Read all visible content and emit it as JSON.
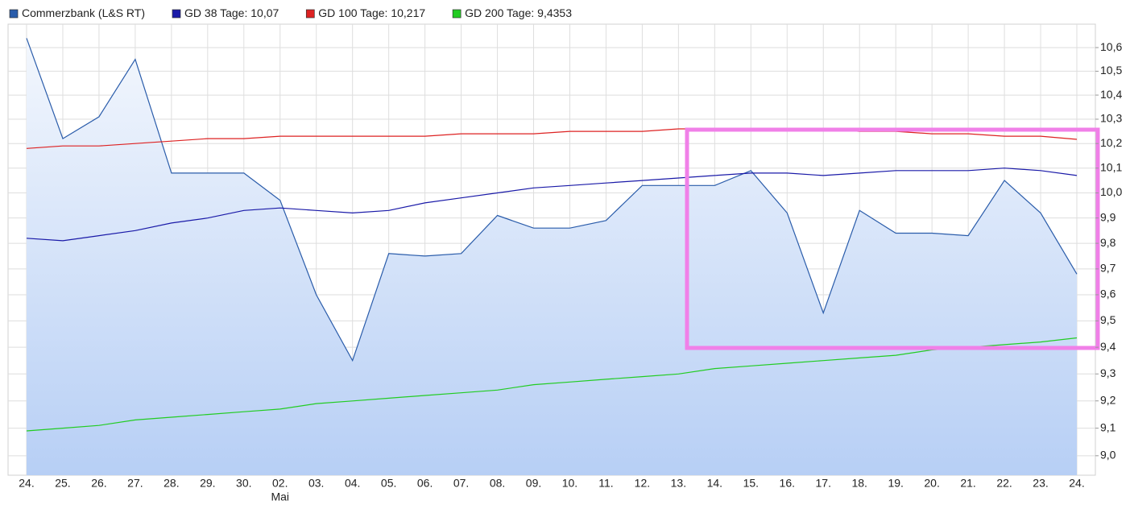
{
  "chart_data": {
    "type": "line",
    "categories": [
      "24.",
      "25.",
      "26.",
      "27.",
      "28.",
      "29.",
      "30.",
      "02.",
      "03.",
      "04.",
      "05.",
      "06.",
      "07.",
      "08.",
      "09.",
      "10.",
      "11.",
      "12.",
      "13.",
      "14.",
      "15.",
      "16.",
      "17.",
      "18.",
      "19.",
      "20.",
      "21.",
      "22.",
      "23.",
      "24."
    ],
    "months": [
      null,
      null,
      null,
      null,
      null,
      null,
      null,
      "Mai",
      null,
      null,
      null,
      null,
      null,
      null,
      null,
      null,
      null,
      null,
      null,
      null,
      null,
      null,
      null,
      null,
      null,
      null,
      null,
      null,
      null,
      null
    ],
    "series": [
      {
        "name": "Commerzbank (L&S RT)",
        "color": "#2a5caa",
        "area": true,
        "values": [
          10.64,
          10.22,
          10.31,
          10.55,
          10.08,
          10.08,
          10.08,
          9.97,
          9.6,
          9.35,
          9.76,
          9.75,
          9.76,
          9.91,
          9.86,
          9.86,
          9.89,
          10.03,
          10.03,
          10.03,
          10.09,
          9.92,
          9.53,
          9.93,
          9.84,
          9.84,
          9.83,
          10.05,
          9.92,
          9.68
        ]
      },
      {
        "name": "GD 38 Tage: 10,07",
        "color": "#1a1aa8",
        "values": [
          9.82,
          9.81,
          9.83,
          9.85,
          9.88,
          9.9,
          9.93,
          9.94,
          9.93,
          9.92,
          9.93,
          9.96,
          9.98,
          10.0,
          10.02,
          10.03,
          10.04,
          10.05,
          10.06,
          10.07,
          10.08,
          10.08,
          10.07,
          10.08,
          10.09,
          10.09,
          10.09,
          10.1,
          10.09,
          10.07
        ]
      },
      {
        "name": "GD 100 Tage: 10,217",
        "color": "#dd2222",
        "values": [
          10.18,
          10.19,
          10.19,
          10.2,
          10.21,
          10.22,
          10.22,
          10.23,
          10.23,
          10.23,
          10.23,
          10.23,
          10.24,
          10.24,
          10.24,
          10.25,
          10.25,
          10.25,
          10.26,
          10.26,
          10.26,
          10.26,
          10.26,
          10.25,
          10.25,
          10.24,
          10.24,
          10.23,
          10.23,
          10.217
        ]
      },
      {
        "name": "GD 200 Tage: 9,4353",
        "color": "#22cc22",
        "values": [
          9.09,
          9.1,
          9.11,
          9.13,
          9.14,
          9.15,
          9.16,
          9.17,
          9.19,
          9.2,
          9.21,
          9.22,
          9.23,
          9.24,
          9.26,
          9.27,
          9.28,
          9.29,
          9.3,
          9.32,
          9.33,
          9.34,
          9.35,
          9.36,
          9.37,
          9.39,
          9.4,
          9.41,
          9.42,
          9.4353
        ]
      }
    ],
    "ylim": [
      8.93,
      10.7
    ],
    "log_scale": true,
    "yticks": [
      {
        "value": 9.0,
        "label": "9,0"
      },
      {
        "value": 9.1,
        "label": "9,1"
      },
      {
        "value": 9.2,
        "label": "9,2"
      },
      {
        "value": 9.3,
        "label": "9,3"
      },
      {
        "value": 9.4,
        "label": "9,4"
      },
      {
        "value": 9.5,
        "label": "9,5"
      },
      {
        "value": 9.6,
        "label": "9,6"
      },
      {
        "value": 9.7,
        "label": "9,7"
      },
      {
        "value": 9.8,
        "label": "9,8"
      },
      {
        "value": 9.9,
        "label": "9,9"
      },
      {
        "value": 10.0,
        "label": "10,0"
      },
      {
        "value": 10.1,
        "label": "10,1"
      },
      {
        "value": 10.2,
        "label": "10,2"
      },
      {
        "value": 10.3,
        "label": "10,3"
      },
      {
        "value": 10.4,
        "label": "10,4"
      },
      {
        "value": 10.5,
        "label": "10,5"
      },
      {
        "value": 10.6,
        "label": "10,6"
      }
    ],
    "grid": true,
    "legend": "top-left"
  }
}
